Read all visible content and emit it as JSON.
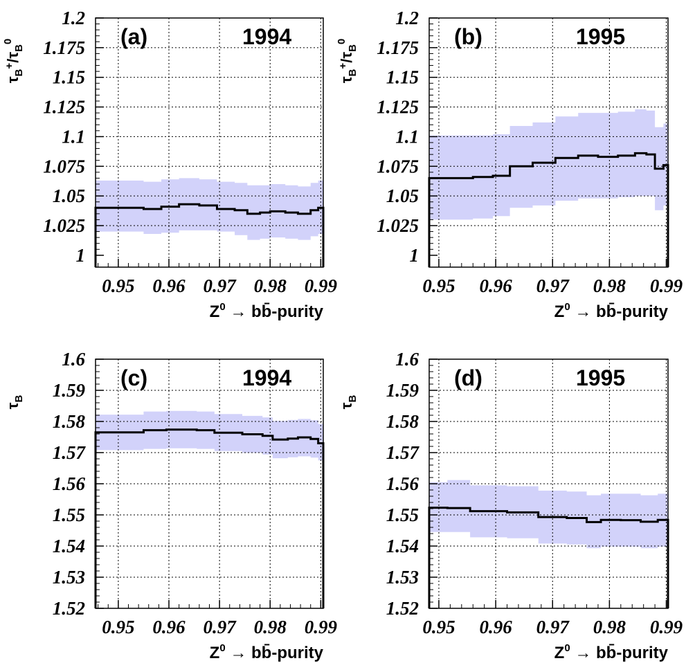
{
  "chart_data": [
    {
      "type": "line",
      "panel_label": "(a)",
      "year_label": "1994",
      "xlabel": {
        "main": "Z",
        "sup": "0",
        "tail": " → bb̄-purity"
      },
      "ylabel": {
        "a": "τ",
        "a_sub": "B",
        "a_sup": "+",
        "slash": "/",
        "b": "τ",
        "b_sub": "B",
        "b_sup": "0"
      },
      "xlim": [
        0.9455,
        0.9905
      ],
      "ylim": [
        0.99,
        1.2
      ],
      "yticks": [
        1,
        1.025,
        1.05,
        1.075,
        1.1,
        1.125,
        1.15,
        1.175,
        1.2
      ],
      "ytick_labels": [
        "1",
        "1.025",
        "1.05",
        "1.075",
        "1.1",
        "1.125",
        "1.15",
        "1.175",
        "1.2"
      ],
      "xticks": [
        0.95,
        0.96,
        0.97,
        0.98,
        0.99
      ],
      "xtick_labels": [
        "0.95",
        "0.96",
        "0.97",
        "0.98",
        "0.99"
      ],
      "grid": true,
      "series": [
        {
          "edges": [
            0.9455,
            0.955,
            0.9585,
            0.962,
            0.966,
            0.9695,
            0.973,
            0.9755,
            0.978,
            0.98,
            0.983,
            0.9855,
            0.988,
            0.9895,
            0.9905
          ],
          "values": [
            1.04,
            1.039,
            1.041,
            1.043,
            1.042,
            1.039,
            1.038,
            1.035,
            1.036,
            1.037,
            1.036,
            1.035,
            1.038,
            1.04
          ],
          "band_low": [
            1.02,
            1.018,
            1.019,
            1.021,
            1.021,
            1.02,
            1.017,
            1.013,
            1.014,
            1.015,
            1.014,
            1.013,
            1.016,
            1.018
          ],
          "band_high": [
            1.063,
            1.062,
            1.064,
            1.065,
            1.064,
            1.062,
            1.061,
            1.059,
            1.059,
            1.06,
            1.059,
            1.058,
            1.061,
            1.063
          ]
        }
      ],
      "colors": {
        "band": "#d2d2fa",
        "line": "#000000"
      }
    },
    {
      "type": "line",
      "panel_label": "(b)",
      "year_label": "1995",
      "xlabel": {
        "main": "Z",
        "sup": "0",
        "tail": " → bb̄-purity"
      },
      "ylabel": {
        "a": "τ",
        "a_sub": "B",
        "a_sup": "+",
        "slash": "/",
        "b": "τ",
        "b_sub": "B",
        "b_sup": "0"
      },
      "xlim": [
        0.9483,
        0.9903
      ],
      "ylim": [
        0.99,
        1.2
      ],
      "yticks": [
        1,
        1.025,
        1.05,
        1.075,
        1.1,
        1.125,
        1.15,
        1.175,
        1.2
      ],
      "ytick_labels": [
        "1",
        "1.025",
        "1.05",
        "1.075",
        "1.1",
        "1.125",
        "1.15",
        "1.175",
        "1.2"
      ],
      "xticks": [
        0.95,
        0.96,
        0.97,
        0.98,
        0.99
      ],
      "xtick_labels": [
        "0.95",
        "0.96",
        "0.97",
        "0.98",
        "0.99"
      ],
      "grid": true,
      "series": [
        {
          "edges": [
            0.9483,
            0.956,
            0.9595,
            0.9625,
            0.9665,
            0.9705,
            0.9745,
            0.978,
            0.9815,
            0.9845,
            0.9865,
            0.988,
            0.9895,
            0.9903
          ],
          "values": [
            1.065,
            1.066,
            1.067,
            1.075,
            1.078,
            1.082,
            1.084,
            1.083,
            1.084,
            1.086,
            1.085,
            1.073,
            1.076
          ],
          "band_low": [
            1.03,
            1.031,
            1.033,
            1.04,
            1.042,
            1.046,
            1.048,
            1.048,
            1.049,
            1.05,
            1.05,
            1.038,
            1.042
          ],
          "band_high": [
            1.101,
            1.101,
            1.102,
            1.109,
            1.112,
            1.117,
            1.12,
            1.12,
            1.121,
            1.123,
            1.122,
            1.108,
            1.111
          ]
        }
      ],
      "colors": {
        "band": "#d2d2fa",
        "line": "#000000"
      }
    },
    {
      "type": "line",
      "panel_label": "(c)",
      "year_label": "1994",
      "xlabel": {
        "main": "Z",
        "sup": "0",
        "tail": " → bb̄-purity"
      },
      "ylabel": {
        "a": "τ",
        "a_sub": "B"
      },
      "xlim": [
        0.9455,
        0.9905
      ],
      "ylim": [
        1.52,
        1.6
      ],
      "yticks": [
        1.52,
        1.53,
        1.54,
        1.55,
        1.56,
        1.57,
        1.58,
        1.59,
        1.6
      ],
      "ytick_labels": [
        "1.52",
        "1.53",
        "1.54",
        "1.55",
        "1.56",
        "1.57",
        "1.58",
        "1.59",
        "1.6"
      ],
      "xticks": [
        0.95,
        0.96,
        0.97,
        0.98,
        0.99
      ],
      "xtick_labels": [
        "0.95",
        "0.96",
        "0.97",
        "0.98",
        "0.99"
      ],
      "grid": true,
      "series": [
        {
          "edges": [
            0.9455,
            0.955,
            0.9595,
            0.9655,
            0.969,
            0.9745,
            0.9785,
            0.9805,
            0.9835,
            0.9855,
            0.988,
            0.9895,
            0.9905
          ],
          "values": [
            1.5765,
            1.5772,
            1.5774,
            1.5772,
            1.5764,
            1.5759,
            1.5754,
            1.5742,
            1.5745,
            1.5749,
            1.5744,
            1.573
          ],
          "band_low": [
            1.5708,
            1.5712,
            1.5714,
            1.5712,
            1.5705,
            1.5699,
            1.5694,
            1.5682,
            1.5685,
            1.5688,
            1.5684,
            1.5675
          ],
          "band_high": [
            1.5822,
            1.5832,
            1.5834,
            1.5832,
            1.5824,
            1.5818,
            1.5813,
            1.5802,
            1.5805,
            1.5808,
            1.5804,
            1.5792
          ]
        }
      ],
      "colors": {
        "band": "#d2d2fa",
        "line": "#000000"
      }
    },
    {
      "type": "line",
      "panel_label": "(d)",
      "year_label": "1995",
      "xlabel": {
        "main": "Z",
        "sup": "0",
        "tail": " → bb̄-purity"
      },
      "ylabel": {
        "a": "τ",
        "a_sub": "B"
      },
      "xlim": [
        0.9483,
        0.9903
      ],
      "ylim": [
        1.52,
        1.6
      ],
      "yticks": [
        1.52,
        1.53,
        1.54,
        1.55,
        1.56,
        1.57,
        1.58,
        1.59,
        1.6
      ],
      "ytick_labels": [
        "1.52",
        "1.53",
        "1.54",
        "1.55",
        "1.56",
        "1.57",
        "1.58",
        "1.59",
        "1.6"
      ],
      "xticks": [
        0.95,
        0.96,
        0.97,
        0.98,
        0.99
      ],
      "xtick_labels": [
        "0.95",
        "0.96",
        "0.97",
        "0.98",
        "0.99"
      ],
      "grid": true,
      "series": [
        {
          "edges": [
            0.9483,
            0.9515,
            0.9555,
            0.962,
            0.9675,
            0.9725,
            0.976,
            0.9785,
            0.982,
            0.9855,
            0.9885,
            0.9903
          ],
          "values": [
            1.5523,
            1.5522,
            1.5512,
            1.5508,
            1.5493,
            1.549,
            1.5477,
            1.5484,
            1.5483,
            1.5478,
            1.5484
          ],
          "band_low": [
            1.5445,
            1.5445,
            1.5428,
            1.5425,
            1.5408,
            1.5405,
            1.5393,
            1.5398,
            1.5398,
            1.5393,
            1.5398
          ],
          "band_high": [
            1.5605,
            1.5612,
            1.5595,
            1.5592,
            1.5578,
            1.5575,
            1.5563,
            1.5568,
            1.5568,
            1.5563,
            1.5568
          ]
        }
      ],
      "colors": {
        "band": "#d2d2fa",
        "line": "#000000"
      }
    }
  ]
}
